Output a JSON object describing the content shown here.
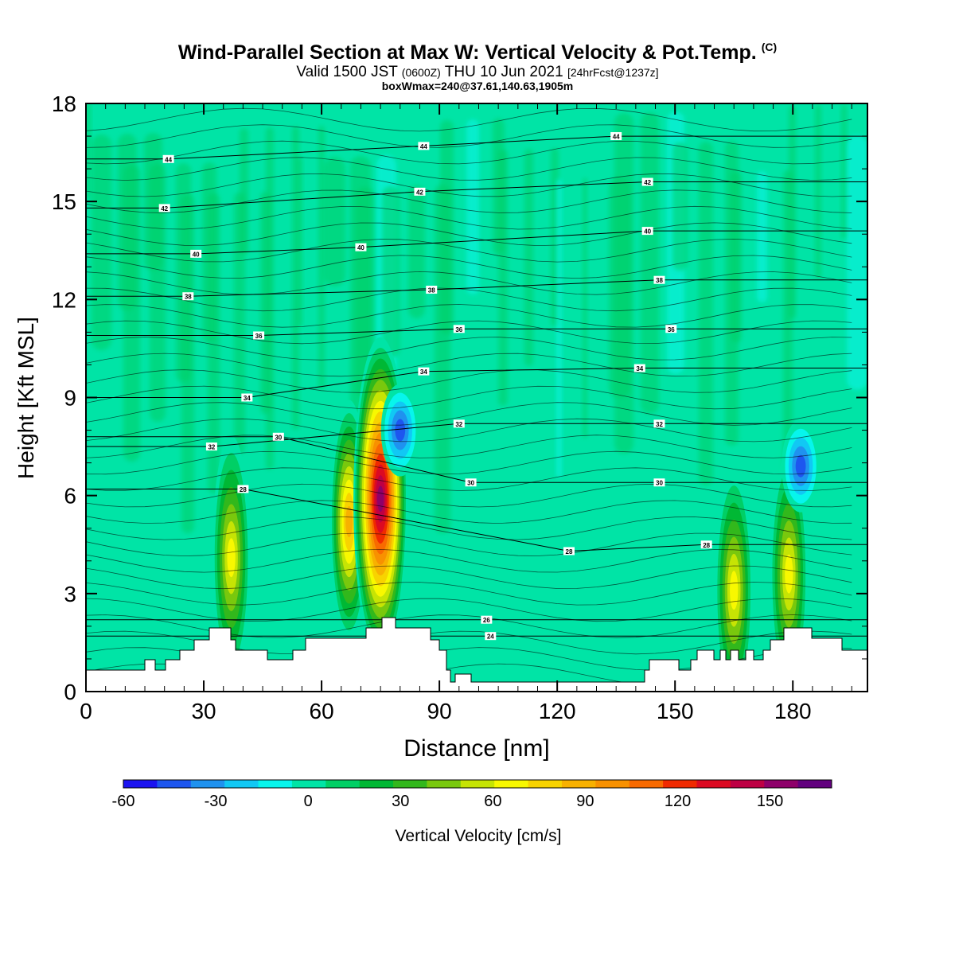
{
  "header": {
    "title": "Wind-Parallel Section at Max W: Vertical Velocity & Pot.Temp.",
    "copyright": "(C)",
    "valid_prefix": "Valid 1500 JST",
    "valid_utc": "(0600Z)",
    "valid_date": "THU 10 Jun 2021",
    "forecast": "[24hrFcst@1237z]",
    "box_info": "boxWmax=240@37.61,140.63,1905m"
  },
  "chart_data": {
    "type": "heatmap",
    "xlabel": "Distance [nm]",
    "ylabel": "Height [Kft MSL]",
    "xlim": [
      0,
      199
    ],
    "ylim": [
      0,
      18
    ],
    "x_ticks": [
      0,
      30,
      60,
      90,
      120,
      150,
      180
    ],
    "y_ticks": [
      0,
      3,
      6,
      9,
      12,
      15,
      18
    ],
    "colorbar": {
      "label": "Vertical Velocity [cm/s]",
      "range": [
        -60,
        170
      ],
      "ticks": [
        -60,
        -30,
        0,
        30,
        60,
        90,
        120,
        150
      ],
      "colors": [
        "#1b13f0",
        "#1d56ef",
        "#1f92ef",
        "#11c8f4",
        "#07f5ec",
        "#00e4a6",
        "#00cf65",
        "#00b834",
        "#32b81c",
        "#79c80d",
        "#c6e404",
        "#f8f800",
        "#f8d300",
        "#f8b100",
        "#f89100",
        "#f86a00",
        "#f02a00",
        "#dc0a22",
        "#be0044",
        "#8e006a",
        "#62007e"
      ]
    },
    "w_cores": [
      {
        "x": 37,
        "z": 4.1,
        "w": 70,
        "sign": "updraft"
      },
      {
        "x": 67,
        "z": 5.2,
        "w": 85,
        "sign": "updraft"
      },
      {
        "x": 75,
        "z": 5.9,
        "w": 150,
        "sign": "updraft"
      },
      {
        "x": 80,
        "z": 8.0,
        "w": -40,
        "sign": "downdraft"
      },
      {
        "x": 165,
        "z": 3.1,
        "w": 65,
        "sign": "updraft"
      },
      {
        "x": 179,
        "z": 3.6,
        "w": 70,
        "sign": "updraft"
      },
      {
        "x": 182,
        "z": 6.9,
        "w": -45,
        "sign": "downdraft"
      }
    ],
    "theta_labels": [
      {
        "text": "44",
        "x": 21,
        "z": 16.3
      },
      {
        "text": "44",
        "x": 86,
        "z": 16.7
      },
      {
        "text": "44",
        "x": 135,
        "z": 17.0
      },
      {
        "text": "42",
        "x": 20,
        "z": 14.8
      },
      {
        "text": "42",
        "x": 85,
        "z": 15.3
      },
      {
        "text": "42",
        "x": 143,
        "z": 15.6
      },
      {
        "text": "40",
        "x": 28,
        "z": 13.4
      },
      {
        "text": "40",
        "x": 70,
        "z": 13.6
      },
      {
        "text": "40",
        "x": 143,
        "z": 14.1
      },
      {
        "text": "38",
        "x": 26,
        "z": 12.1
      },
      {
        "text": "38",
        "x": 88,
        "z": 12.3
      },
      {
        "text": "38",
        "x": 146,
        "z": 12.6
      },
      {
        "text": "36",
        "x": 44,
        "z": 10.9
      },
      {
        "text": "36",
        "x": 95,
        "z": 11.1
      },
      {
        "text": "36",
        "x": 149,
        "z": 11.1
      },
      {
        "text": "34",
        "x": 41,
        "z": 9.0
      },
      {
        "text": "34",
        "x": 86,
        "z": 9.8
      },
      {
        "text": "34",
        "x": 141,
        "z": 9.9
      },
      {
        "text": "32",
        "x": 32,
        "z": 7.5
      },
      {
        "text": "32",
        "x": 95,
        "z": 8.2
      },
      {
        "text": "32",
        "x": 146,
        "z": 8.2
      },
      {
        "text": "30",
        "x": 49,
        "z": 7.8
      },
      {
        "text": "30",
        "x": 98,
        "z": 6.4
      },
      {
        "text": "30",
        "x": 146,
        "z": 6.4
      },
      {
        "text": "28",
        "x": 40,
        "z": 6.2
      },
      {
        "text": "28",
        "x": 123,
        "z": 4.3
      },
      {
        "text": "28",
        "x": 158,
        "z": 4.5
      },
      {
        "text": "26",
        "x": 102,
        "z": 2.2
      },
      {
        "text": "24",
        "x": 103,
        "z": 1.7
      }
    ]
  }
}
